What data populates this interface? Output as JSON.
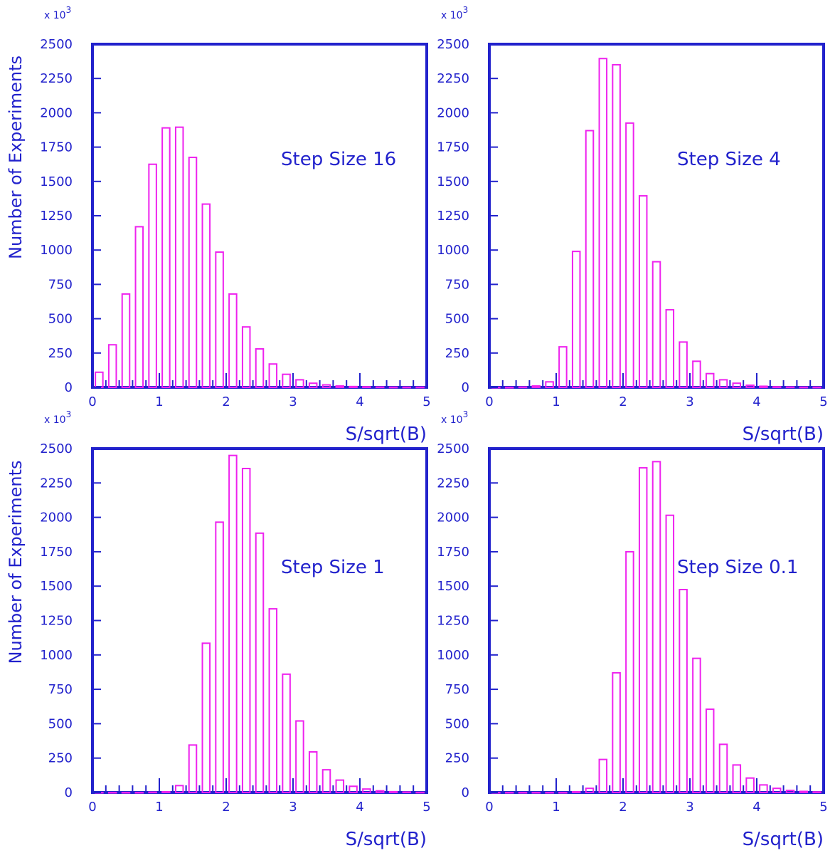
{
  "chart_data": [
    {
      "type": "bar",
      "annotation": "Step Size 16",
      "xlabel": "S/sqrt(B)",
      "ylabel": "Number of Experiments",
      "y_multiplier": "x 10",
      "y_multiplier_exp": "3",
      "xlim": [
        0,
        5
      ],
      "ylim": [
        0,
        2500
      ],
      "xticks": [
        0,
        1,
        2,
        3,
        4,
        5
      ],
      "yticks": [
        0,
        250,
        500,
        750,
        1000,
        1250,
        1500,
        1750,
        2000,
        2250,
        2500
      ],
      "bin_width": 0.2,
      "x": [
        0.0,
        0.2,
        0.4,
        0.6,
        0.8,
        1.0,
        1.2,
        1.4,
        1.6,
        1.8,
        2.0,
        2.2,
        2.4,
        2.6,
        2.8,
        3.0,
        3.2,
        3.4,
        3.6,
        3.8,
        4.0,
        4.2,
        4.4,
        4.6,
        4.8
      ],
      "values": [
        110,
        310,
        680,
        1170,
        1625,
        1890,
        1895,
        1675,
        1335,
        985,
        680,
        440,
        280,
        170,
        95,
        55,
        30,
        18,
        10,
        6,
        4,
        2,
        1,
        1,
        1
      ]
    },
    {
      "type": "bar",
      "annotation": "Step Size 4",
      "xlabel": "S/sqrt(B)",
      "ylabel": "",
      "y_multiplier": "x 10",
      "y_multiplier_exp": "3",
      "xlim": [
        0,
        5
      ],
      "ylim": [
        0,
        2500
      ],
      "xticks": [
        0,
        1,
        2,
        3,
        4,
        5
      ],
      "yticks": [
        0,
        250,
        500,
        750,
        1000,
        1250,
        1500,
        1750,
        2000,
        2250,
        2500
      ],
      "bin_width": 0.2,
      "x": [
        0.0,
        0.2,
        0.4,
        0.6,
        0.8,
        1.0,
        1.2,
        1.4,
        1.6,
        1.8,
        2.0,
        2.2,
        2.4,
        2.6,
        2.8,
        3.0,
        3.2,
        3.4,
        3.6,
        3.8,
        4.0,
        4.2,
        4.4,
        4.6,
        4.8
      ],
      "values": [
        0,
        0,
        2,
        10,
        40,
        295,
        990,
        1870,
        2395,
        2350,
        1925,
        1395,
        915,
        565,
        330,
        190,
        100,
        55,
        30,
        15,
        8,
        4,
        2,
        1,
        1
      ]
    },
    {
      "type": "bar",
      "annotation": "Step Size 1",
      "xlabel": "S/sqrt(B)",
      "ylabel": "Number of Experiments",
      "y_multiplier": "x 10",
      "y_multiplier_exp": "3",
      "xlim": [
        0,
        5
      ],
      "ylim": [
        0,
        2500
      ],
      "xticks": [
        0,
        1,
        2,
        3,
        4,
        5
      ],
      "yticks": [
        0,
        250,
        500,
        750,
        1000,
        1250,
        1500,
        1750,
        2000,
        2250,
        2500
      ],
      "bin_width": 0.2,
      "x": [
        0.0,
        0.2,
        0.4,
        0.6,
        0.8,
        1.0,
        1.2,
        1.4,
        1.6,
        1.8,
        2.0,
        2.2,
        2.4,
        2.6,
        2.8,
        3.0,
        3.2,
        3.4,
        3.6,
        3.8,
        4.0,
        4.2,
        4.4,
        4.6,
        4.8
      ],
      "values": [
        0,
        0,
        0,
        0,
        2,
        5,
        50,
        345,
        1085,
        1965,
        2450,
        2355,
        1885,
        1335,
        860,
        520,
        295,
        165,
        90,
        45,
        25,
        12,
        6,
        3,
        1
      ]
    },
    {
      "type": "bar",
      "annotation": "Step Size 0.1",
      "xlabel": "S/sqrt(B)",
      "ylabel": "",
      "y_multiplier": "x 10",
      "y_multiplier_exp": "3",
      "xlim": [
        0,
        5
      ],
      "ylim": [
        0,
        2500
      ],
      "xticks": [
        0,
        1,
        2,
        3,
        4,
        5
      ],
      "yticks": [
        0,
        250,
        500,
        750,
        1000,
        1250,
        1500,
        1750,
        2000,
        2250,
        2500
      ],
      "bin_width": 0.2,
      "x": [
        0.0,
        0.2,
        0.4,
        0.6,
        0.8,
        1.0,
        1.2,
        1.4,
        1.6,
        1.8,
        2.0,
        2.2,
        2.4,
        2.6,
        2.8,
        3.0,
        3.2,
        3.4,
        3.6,
        3.8,
        4.0,
        4.2,
        4.4,
        4.6,
        4.8
      ],
      "values": [
        0,
        0,
        0,
        0,
        0,
        0,
        5,
        30,
        240,
        870,
        1750,
        2360,
        2405,
        2015,
        1475,
        975,
        605,
        350,
        200,
        105,
        55,
        30,
        15,
        8,
        4
      ]
    }
  ]
}
